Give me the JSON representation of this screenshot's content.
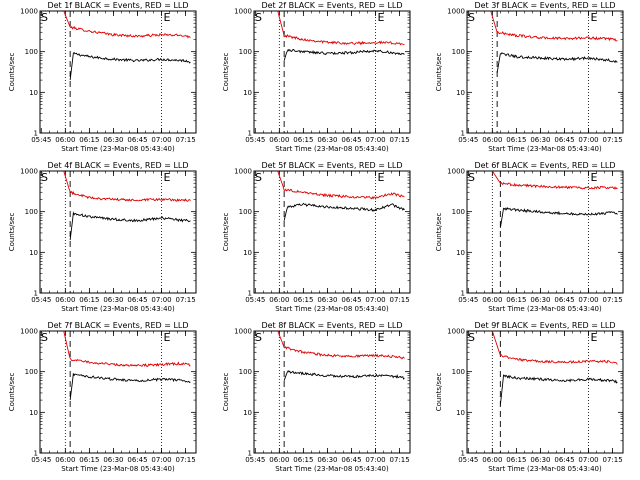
{
  "chart_data": [
    {
      "type": "line",
      "title": "Det 1f BLACK = Events, RED = LLD",
      "xlabel": "Start Time (23-Mar-08 05:43:40)",
      "ylabel": "Counts/sec",
      "xticks": [
        "05:45",
        "06:00",
        "06:15",
        "06:30",
        "06:45",
        "07:00",
        "07:15"
      ],
      "yscale": "log",
      "ylim": [
        1,
        1000
      ],
      "yticks": [
        "1",
        "10",
        "100",
        "1000"
      ],
      "markers": {
        "S": "06:00",
        "E": "07:00"
      },
      "series": [
        {
          "name": "BLACK = Events",
          "color": "#000000",
          "x": [
            "06:03",
            "06:05",
            "06:15",
            "06:30",
            "06:45",
            "07:00",
            "07:15",
            "07:18"
          ],
          "values": [
            20,
            90,
            75,
            65,
            60,
            65,
            60,
            55
          ]
        },
        {
          "name": "RED = LLD",
          "color": "#e00000",
          "x": [
            "05:59",
            "06:03",
            "06:15",
            "06:30",
            "06:45",
            "07:00",
            "07:15",
            "07:18"
          ],
          "values": [
            1000,
            400,
            320,
            260,
            240,
            260,
            250,
            220
          ]
        }
      ]
    },
    {
      "type": "line",
      "title": "Det 2f BLACK = Events, RED = LLD",
      "xlabel": "Start Time (23-Mar-08 05:43:40)",
      "ylabel": "Counts/sec",
      "xticks": [
        "05:45",
        "06:00",
        "06:15",
        "06:30",
        "06:45",
        "07:00",
        "07:15"
      ],
      "yscale": "log",
      "ylim": [
        1,
        1000
      ],
      "yticks": [
        "1",
        "10",
        "100",
        "1000"
      ],
      "markers": {
        "S": "06:00",
        "E": "07:00"
      },
      "series": [
        {
          "name": "BLACK = Events",
          "color": "#000000",
          "x": [
            "06:03",
            "06:05",
            "06:15",
            "06:30",
            "06:45",
            "07:00",
            "07:15",
            "07:18"
          ],
          "values": [
            60,
            110,
            100,
            90,
            95,
            105,
            90,
            85
          ]
        },
        {
          "name": "RED = LLD",
          "color": "#e00000",
          "x": [
            "05:59",
            "06:03",
            "06:15",
            "06:30",
            "06:45",
            "07:00",
            "07:15",
            "07:18"
          ],
          "values": [
            1000,
            250,
            200,
            170,
            160,
            170,
            160,
            150
          ]
        }
      ]
    },
    {
      "type": "line",
      "title": "Det 3f BLACK = Events, RED = LLD",
      "xlabel": "Start Time (23-Mar-08 05:43:40)",
      "ylabel": "Counts/sec",
      "xticks": [
        "05:45",
        "06:00",
        "06:15",
        "06:30",
        "06:45",
        "07:00",
        "07:15"
      ],
      "yscale": "log",
      "ylim": [
        1,
        1000
      ],
      "yticks": [
        "1",
        "10",
        "100",
        "1000"
      ],
      "markers": {
        "S": "06:00",
        "E": "07:00"
      },
      "series": [
        {
          "name": "BLACK = Events",
          "color": "#000000",
          "x": [
            "06:03",
            "06:05",
            "06:15",
            "06:30",
            "06:45",
            "07:00",
            "07:15",
            "07:18"
          ],
          "values": [
            30,
            90,
            75,
            70,
            65,
            70,
            60,
            55
          ]
        },
        {
          "name": "RED = LLD",
          "color": "#e00000",
          "x": [
            "05:59",
            "06:03",
            "06:15",
            "06:30",
            "06:45",
            "07:00",
            "07:15",
            "07:18"
          ],
          "values": [
            1000,
            300,
            250,
            220,
            210,
            220,
            200,
            190
          ]
        }
      ]
    },
    {
      "type": "line",
      "title": "Det 4f BLACK = Events, RED = LLD",
      "xlabel": "Start Time (23-Mar-08 05:43:40)",
      "ylabel": "Counts/sec",
      "xticks": [
        "05:45",
        "06:00",
        "06:15",
        "06:30",
        "06:45",
        "07:00",
        "07:15"
      ],
      "yscale": "log",
      "ylim": [
        1,
        1000
      ],
      "yticks": [
        "1",
        "10",
        "100",
        "1000"
      ],
      "markers": {
        "S": "06:00",
        "E": "07:00"
      },
      "series": [
        {
          "name": "BLACK = Events",
          "color": "#000000",
          "x": [
            "06:03",
            "06:05",
            "06:15",
            "06:30",
            "06:45",
            "07:00",
            "07:15",
            "07:18"
          ],
          "values": [
            20,
            90,
            75,
            65,
            60,
            70,
            60,
            60
          ]
        },
        {
          "name": "RED = LLD",
          "color": "#e00000",
          "x": [
            "05:59",
            "06:03",
            "06:15",
            "06:30",
            "06:45",
            "07:00",
            "07:15",
            "07:18"
          ],
          "values": [
            1000,
            300,
            220,
            200,
            190,
            200,
            190,
            185
          ]
        }
      ]
    },
    {
      "type": "line",
      "title": "Det 5f BLACK = Events, RED = LLD",
      "xlabel": "Start Time (23-Mar-08 05:43:40)",
      "ylabel": "Counts/sec",
      "xticks": [
        "05:45",
        "06:00",
        "06:15",
        "06:30",
        "06:45",
        "07:00",
        "07:15"
      ],
      "yscale": "log",
      "ylim": [
        1,
        1000
      ],
      "yticks": [
        "1",
        "10",
        "100",
        "1000"
      ],
      "markers": {
        "S": "06:00",
        "E": "07:00"
      },
      "series": [
        {
          "name": "BLACK = Events",
          "color": "#000000",
          "x": [
            "06:03",
            "06:05",
            "06:15",
            "06:30",
            "06:45",
            "07:00",
            "07:10",
            "07:18"
          ],
          "values": [
            60,
            130,
            150,
            130,
            120,
            110,
            150,
            110
          ]
        },
        {
          "name": "RED = LLD",
          "color": "#e00000",
          "x": [
            "05:59",
            "06:03",
            "06:15",
            "06:30",
            "06:45",
            "07:00",
            "07:10",
            "07:18"
          ],
          "values": [
            1000,
            350,
            300,
            250,
            230,
            220,
            280,
            230
          ]
        }
      ]
    },
    {
      "type": "line",
      "title": "Det 6f BLACK = Events, RED = LLD",
      "xlabel": "Start Time (23-Mar-08 05:43:40)",
      "ylabel": "Counts/sec",
      "xticks": [
        "05:45",
        "06:00",
        "06:15",
        "06:30",
        "06:45",
        "07:00",
        "07:15"
      ],
      "yscale": "log",
      "ylim": [
        1,
        1000
      ],
      "yticks": [
        "1",
        "10",
        "100",
        "1000"
      ],
      "markers": {
        "S": "06:00",
        "E": "07:00"
      },
      "series": [
        {
          "name": "BLACK = Events",
          "color": "#000000",
          "x": [
            "06:05",
            "06:07",
            "06:15",
            "06:30",
            "06:45",
            "07:00",
            "07:15",
            "07:18"
          ],
          "values": [
            40,
            120,
            110,
            100,
            90,
            85,
            95,
            85
          ]
        },
        {
          "name": "RED = LLD",
          "color": "#e00000",
          "x": [
            "06:00",
            "06:05",
            "06:15",
            "06:30",
            "06:45",
            "07:00",
            "07:15",
            "07:18"
          ],
          "values": [
            1000,
            500,
            450,
            420,
            400,
            380,
            400,
            360
          ]
        }
      ]
    },
    {
      "type": "line",
      "title": "Det 7f BLACK = Events, RED = LLD",
      "xlabel": "Start Time (23-Mar-08 05:43:40)",
      "ylabel": "Counts/sec",
      "xticks": [
        "05:45",
        "06:00",
        "06:15",
        "06:30",
        "06:45",
        "07:00",
        "07:15"
      ],
      "yscale": "log",
      "ylim": [
        1,
        1000
      ],
      "yticks": [
        "1",
        "10",
        "100",
        "1000"
      ],
      "markers": {
        "S": "06:00",
        "E": "07:00"
      },
      "series": [
        {
          "name": "BLACK = Events",
          "color": "#000000",
          "x": [
            "06:03",
            "06:05",
            "06:15",
            "06:30",
            "06:45",
            "07:00",
            "07:15",
            "07:18"
          ],
          "values": [
            20,
            85,
            75,
            65,
            60,
            65,
            60,
            55
          ]
        },
        {
          "name": "RED = LLD",
          "color": "#e00000",
          "x": [
            "05:59",
            "06:03",
            "06:15",
            "06:30",
            "06:45",
            "07:00",
            "07:15",
            "07:18"
          ],
          "values": [
            1000,
            200,
            170,
            150,
            140,
            150,
            160,
            140
          ]
        }
      ]
    },
    {
      "type": "line",
      "title": "Det 8f BLACK = Events, RED = LLD",
      "xlabel": "Start Time (23-Mar-08 05:43:40)",
      "ylabel": "Counts/sec",
      "xticks": [
        "05:45",
        "06:00",
        "06:15",
        "06:30",
        "06:45",
        "07:00",
        "07:15"
      ],
      "yscale": "log",
      "ylim": [
        1,
        1000
      ],
      "yticks": [
        "1",
        "10",
        "100",
        "1000"
      ],
      "markers": {
        "S": "06:00",
        "E": "07:00"
      },
      "series": [
        {
          "name": "BLACK = Events",
          "color": "#000000",
          "x": [
            "06:03",
            "06:05",
            "06:15",
            "06:30",
            "06:45",
            "07:00",
            "07:15",
            "07:18"
          ],
          "values": [
            60,
            100,
            90,
            80,
            75,
            80,
            75,
            70
          ]
        },
        {
          "name": "RED = LLD",
          "color": "#e00000",
          "x": [
            "05:59",
            "06:03",
            "06:15",
            "06:30",
            "06:45",
            "07:00",
            "07:15",
            "07:18"
          ],
          "values": [
            1000,
            400,
            300,
            250,
            240,
            250,
            230,
            210
          ]
        }
      ]
    },
    {
      "type": "line",
      "title": "Det 9f BLACK = Events, RED = LLD",
      "xlabel": "Start Time (23-Mar-08 05:43:40)",
      "ylabel": "Counts/sec",
      "xticks": [
        "05:45",
        "06:00",
        "06:15",
        "06:30",
        "06:45",
        "07:00",
        "07:15"
      ],
      "yscale": "log",
      "ylim": [
        1,
        1000
      ],
      "yticks": [
        "1",
        "10",
        "100",
        "1000"
      ],
      "markers": {
        "S": "06:00",
        "E": "07:00"
      },
      "series": [
        {
          "name": "BLACK = Events",
          "color": "#000000",
          "x": [
            "06:05",
            "06:07",
            "06:15",
            "06:30",
            "06:45",
            "07:00",
            "07:15",
            "07:18"
          ],
          "values": [
            15,
            80,
            70,
            65,
            60,
            65,
            60,
            55
          ]
        },
        {
          "name": "RED = LLD",
          "color": "#e00000",
          "x": [
            "06:00",
            "06:05",
            "06:15",
            "06:30",
            "06:45",
            "07:00",
            "07:15",
            "07:18"
          ],
          "values": [
            1000,
            250,
            200,
            180,
            170,
            180,
            175,
            150
          ]
        }
      ]
    }
  ]
}
